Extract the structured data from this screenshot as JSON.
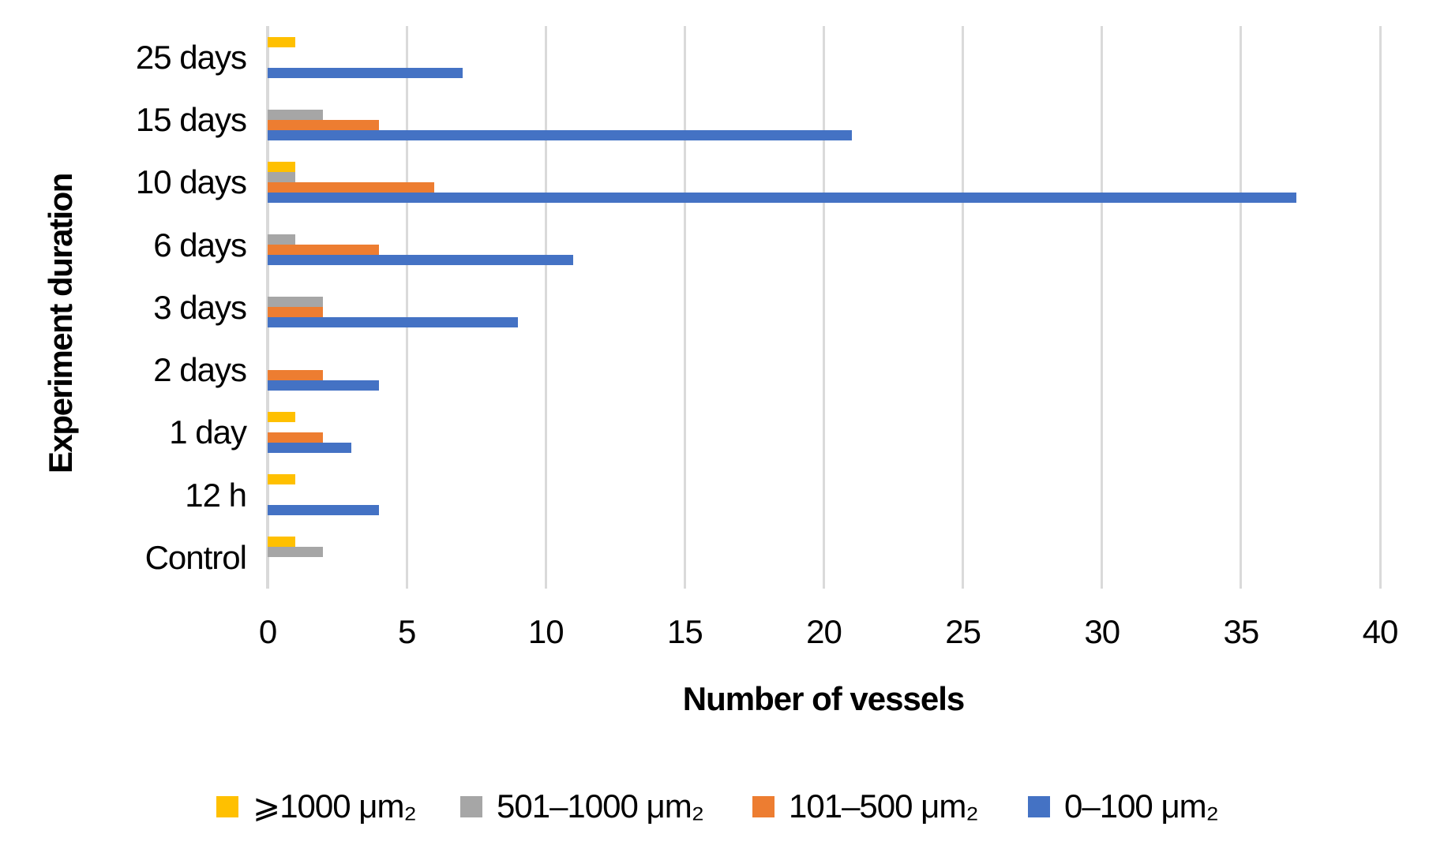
{
  "chart_data": {
    "type": "bar",
    "orientation": "horizontal",
    "title": "",
    "xlabel": "Number of vessels",
    "ylabel": "Experiment duration",
    "categories": [
      "25 days",
      "15 days",
      "10 days",
      "6 days",
      "3 days",
      "2 days",
      "1 day",
      "12 h",
      "Control"
    ],
    "series": [
      {
        "name": "⩾1000 μm₂",
        "color": "#FFC000",
        "values": [
          1,
          0,
          1,
          0,
          0,
          0,
          1,
          1,
          1
        ]
      },
      {
        "name": "501–1000 μm₂",
        "color": "#A6A6A6",
        "values": [
          0,
          2,
          1,
          1,
          2,
          0,
          0,
          0,
          2
        ]
      },
      {
        "name": "101–500 μm₂",
        "color": "#ED7D31",
        "values": [
          0,
          4,
          6,
          4,
          2,
          2,
          2,
          0,
          0
        ]
      },
      {
        "name": "0–100 μm₂",
        "color": "#4472C4",
        "values": [
          7,
          21,
          37,
          11,
          9,
          4,
          3,
          4,
          0
        ]
      }
    ],
    "x_ticks": [
      0,
      5,
      10,
      15,
      20,
      25,
      30,
      35,
      40
    ],
    "xlim": [
      0,
      40
    ],
    "grid": "vertical",
    "gridline_color": "#DADADA",
    "legend_position": "bottom",
    "legend_order": [
      "⩾1000 μm₂",
      "501–1000 μm₂",
      "101–500 μm₂",
      "0–100 μm₂"
    ]
  }
}
